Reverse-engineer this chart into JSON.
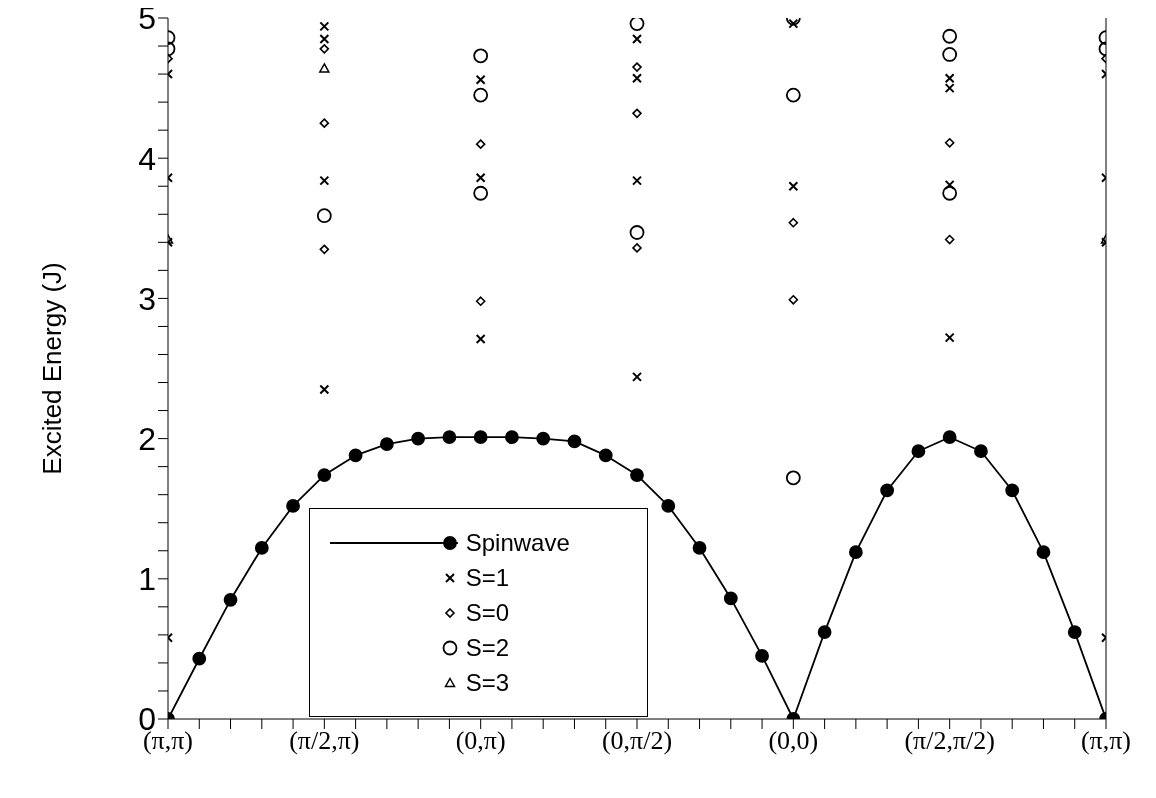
{
  "chart_data": {
    "type": "scatter",
    "ylabel": "Excited Energy (J)",
    "ylim": [
      0,
      5
    ],
    "categories": [
      "(π,π)",
      null,
      null,
      null,
      null,
      "(π/2,π)",
      null,
      null,
      null,
      null,
      "(0,π)",
      null,
      null,
      null,
      null,
      "(0,π/2)",
      null,
      null,
      null,
      null,
      "(0,0)",
      null,
      null,
      null,
      null,
      "(π/2,π/2)",
      null,
      null,
      null,
      null,
      "(π,π)"
    ],
    "yticks": [
      0,
      {
        "value": 0.2,
        "label": null
      },
      {
        "value": 0.4,
        "label": null
      },
      {
        "value": 0.6,
        "label": null
      },
      {
        "value": 0.8,
        "label": null
      },
      1,
      {
        "value": 1.2,
        "label": null
      },
      {
        "value": 1.4,
        "label": null
      },
      {
        "value": 1.6,
        "label": null
      },
      {
        "value": 1.8,
        "label": null
      },
      2,
      {
        "value": 2.2,
        "label": null
      },
      {
        "value": 2.4,
        "label": null
      },
      {
        "value": 2.6,
        "label": null
      },
      {
        "value": 2.8,
        "label": null
      },
      3,
      {
        "value": 3.2,
        "label": null
      },
      {
        "value": 3.4,
        "label": null
      },
      {
        "value": 3.6,
        "label": null
      },
      {
        "value": 3.8,
        "label": null
      },
      4,
      {
        "value": 4.2,
        "label": null
      },
      {
        "value": 4.4,
        "label": null
      },
      {
        "value": 4.6,
        "label": null
      },
      {
        "value": 4.8,
        "label": null
      },
      5
    ],
    "legend": "bottom left",
    "series": [
      {
        "name": "Spinwave",
        "type": "line",
        "marker": "circle",
        "color": "#000000",
        "values": [
          0,
          0.43,
          0.85,
          1.22,
          1.52,
          1.74,
          1.88,
          1.96,
          2.0,
          2.01,
          2.01,
          2.01,
          2.0,
          1.98,
          1.88,
          1.74,
          1.52,
          1.22,
          0.86,
          0.45,
          0,
          0.62,
          1.19,
          1.63,
          1.91,
          2.01,
          1.91,
          1.63,
          1.19,
          0.62,
          0
        ]
      },
      {
        "name": "S=1",
        "marker": "cross",
        "color": "#000000",
        "values": [
          4.6,
          null,
          null,
          null,
          null,
          4.94,
          null,
          null,
          null,
          null,
          4.56,
          null,
          null,
          null,
          null,
          4.85,
          null,
          null,
          null,
          null,
          4.96,
          null,
          null,
          null,
          null,
          4.57,
          null,
          null,
          null,
          null,
          4.6
        ]
      },
      {
        "marker": "cross",
        "color": "#000000",
        "values": [
          3.86,
          null,
          null,
          null,
          null,
          4.85,
          null,
          null,
          null,
          null,
          3.86,
          null,
          null,
          null,
          null,
          4.57,
          null,
          null,
          null,
          null,
          3.8,
          null,
          null,
          null,
          null,
          4.5,
          null,
          null,
          null,
          null,
          3.86
        ]
      },
      {
        "marker": "cross",
        "color": "#000000",
        "values": [
          3.4,
          null,
          null,
          null,
          null,
          3.84,
          null,
          null,
          null,
          null,
          2.71,
          null,
          null,
          null,
          null,
          3.84,
          null,
          null,
          null,
          null,
          null,
          null,
          null,
          null,
          null,
          3.81,
          null,
          null,
          null,
          null,
          3.4
        ]
      },
      {
        "marker": "cross",
        "color": "#000000",
        "values": [
          0.58,
          null,
          null,
          null,
          null,
          2.35,
          null,
          null,
          null,
          null,
          null,
          null,
          null,
          null,
          null,
          2.44,
          null,
          null,
          null,
          null,
          null,
          null,
          null,
          null,
          null,
          2.72,
          null,
          null,
          null,
          null,
          0.58
        ]
      },
      {
        "name": "S=0",
        "marker": "diamond",
        "color": "#000000",
        "values": [
          4.71,
          null,
          null,
          null,
          null,
          4.78,
          null,
          null,
          null,
          null,
          4.1,
          null,
          null,
          null,
          null,
          4.65,
          null,
          null,
          null,
          null,
          3.54,
          null,
          null,
          null,
          null,
          4.11,
          null,
          null,
          null,
          null,
          4.71
        ]
      },
      {
        "marker": "diamond",
        "color": "#000000",
        "values": [
          null,
          null,
          null,
          null,
          null,
          4.25,
          null,
          null,
          null,
          null,
          2.98,
          null,
          null,
          null,
          null,
          4.32,
          null,
          null,
          null,
          null,
          2.99,
          null,
          null,
          null,
          null,
          3.42,
          null,
          null,
          null,
          null,
          null
        ]
      },
      {
        "marker": "diamond",
        "color": "#000000",
        "values": [
          null,
          null,
          null,
          null,
          null,
          3.35,
          null,
          null,
          null,
          null,
          null,
          null,
          null,
          null,
          null,
          3.36,
          null,
          null,
          null,
          null,
          null,
          null,
          null,
          null,
          null,
          null,
          null,
          null,
          null,
          null,
          null
        ]
      },
      {
        "name": "S=2",
        "marker": "circle",
        "color": "#000000",
        "values": [
          4.86,
          null,
          null,
          null,
          null,
          3.59,
          null,
          null,
          null,
          null,
          4.73,
          null,
          null,
          null,
          null,
          4.96,
          null,
          null,
          null,
          null,
          5.0,
          null,
          null,
          null,
          null,
          4.87,
          null,
          null,
          null,
          null,
          4.86
        ]
      },
      {
        "marker": "circle",
        "color": "#000000",
        "values": [
          4.78,
          null,
          null,
          null,
          null,
          null,
          null,
          null,
          null,
          null,
          4.45,
          null,
          null,
          null,
          null,
          3.47,
          null,
          null,
          null,
          null,
          4.45,
          null,
          null,
          null,
          null,
          4.74,
          null,
          null,
          null,
          null,
          4.78
        ]
      },
      {
        "marker": "circle",
        "color": "#000000",
        "values": [
          null,
          null,
          null,
          null,
          null,
          null,
          null,
          null,
          null,
          null,
          3.75,
          null,
          null,
          null,
          null,
          null,
          null,
          null,
          null,
          null,
          1.72,
          null,
          null,
          null,
          null,
          3.75,
          null,
          null,
          null,
          null,
          null
        ]
      },
      {
        "name": "S=3",
        "marker": "triangle",
        "color": "#000000",
        "values": [
          3.42,
          null,
          null,
          null,
          null,
          4.64,
          null,
          null,
          null,
          null,
          null,
          null,
          null,
          null,
          null,
          null,
          null,
          null,
          null,
          null,
          null,
          null,
          null,
          null,
          null,
          null,
          null,
          null,
          null,
          null,
          3.42
        ]
      }
    ]
  }
}
